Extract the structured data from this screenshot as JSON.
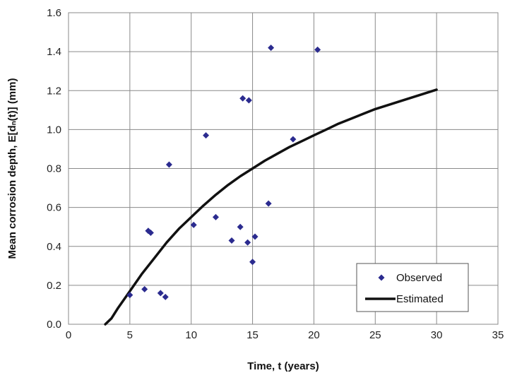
{
  "chart_data": {
    "type": "scatter",
    "title": "",
    "xlabel": "Time, t (years)",
    "ylabel": "Mean corrosion depth, E[dₙ(t)] (mm)",
    "xlim": [
      0,
      35
    ],
    "ylim": [
      0,
      1.6
    ],
    "x_ticks": [
      0,
      5,
      10,
      15,
      20,
      25,
      30,
      35
    ],
    "y_ticks": [
      0.0,
      0.2,
      0.4,
      0.6,
      0.8,
      1.0,
      1.2,
      1.4,
      1.6
    ],
    "x_tick_labels": [
      "0",
      "5",
      "10",
      "15",
      "20",
      "25",
      "30",
      "35"
    ],
    "y_tick_labels": [
      "0.0",
      "0.2",
      "0.4",
      "0.6",
      "0.8",
      "1.0",
      "1.2",
      "1.4",
      "1.6"
    ],
    "grid": true,
    "legend_position": "bottom-right",
    "series": [
      {
        "name": "Observed",
        "kind": "scatter",
        "marker": "diamond",
        "color": "#2b2b8f",
        "x": [
          5.0,
          6.2,
          6.5,
          6.7,
          7.5,
          7.9,
          8.2,
          10.2,
          11.2,
          12.0,
          13.3,
          14.0,
          14.2,
          14.6,
          14.7,
          15.0,
          15.2,
          16.3,
          16.5,
          18.3,
          20.3
        ],
        "y": [
          0.15,
          0.18,
          0.48,
          0.47,
          0.16,
          0.14,
          0.82,
          0.51,
          0.97,
          0.55,
          0.43,
          0.5,
          1.16,
          0.42,
          1.15,
          0.32,
          0.45,
          0.62,
          1.42,
          0.95,
          1.41
        ]
      },
      {
        "name": "Estimated",
        "kind": "line",
        "color": "#111111",
        "x": [
          3.0,
          3.5,
          4.0,
          5.0,
          6.0,
          7.0,
          8.0,
          9.0,
          10.0,
          11.0,
          12.0,
          13.0,
          14.0,
          15.0,
          16.0,
          17.0,
          18.0,
          19.0,
          20.0,
          21.0,
          22.0,
          23.0,
          24.0,
          25.0,
          26.0,
          27.0,
          28.0,
          29.0,
          30.0
        ],
        "y": [
          0.0,
          0.03,
          0.08,
          0.17,
          0.26,
          0.34,
          0.42,
          0.49,
          0.55,
          0.61,
          0.665,
          0.715,
          0.76,
          0.8,
          0.84,
          0.875,
          0.91,
          0.94,
          0.97,
          1.0,
          1.03,
          1.055,
          1.08,
          1.105,
          1.125,
          1.145,
          1.165,
          1.185,
          1.205
        ]
      }
    ]
  }
}
